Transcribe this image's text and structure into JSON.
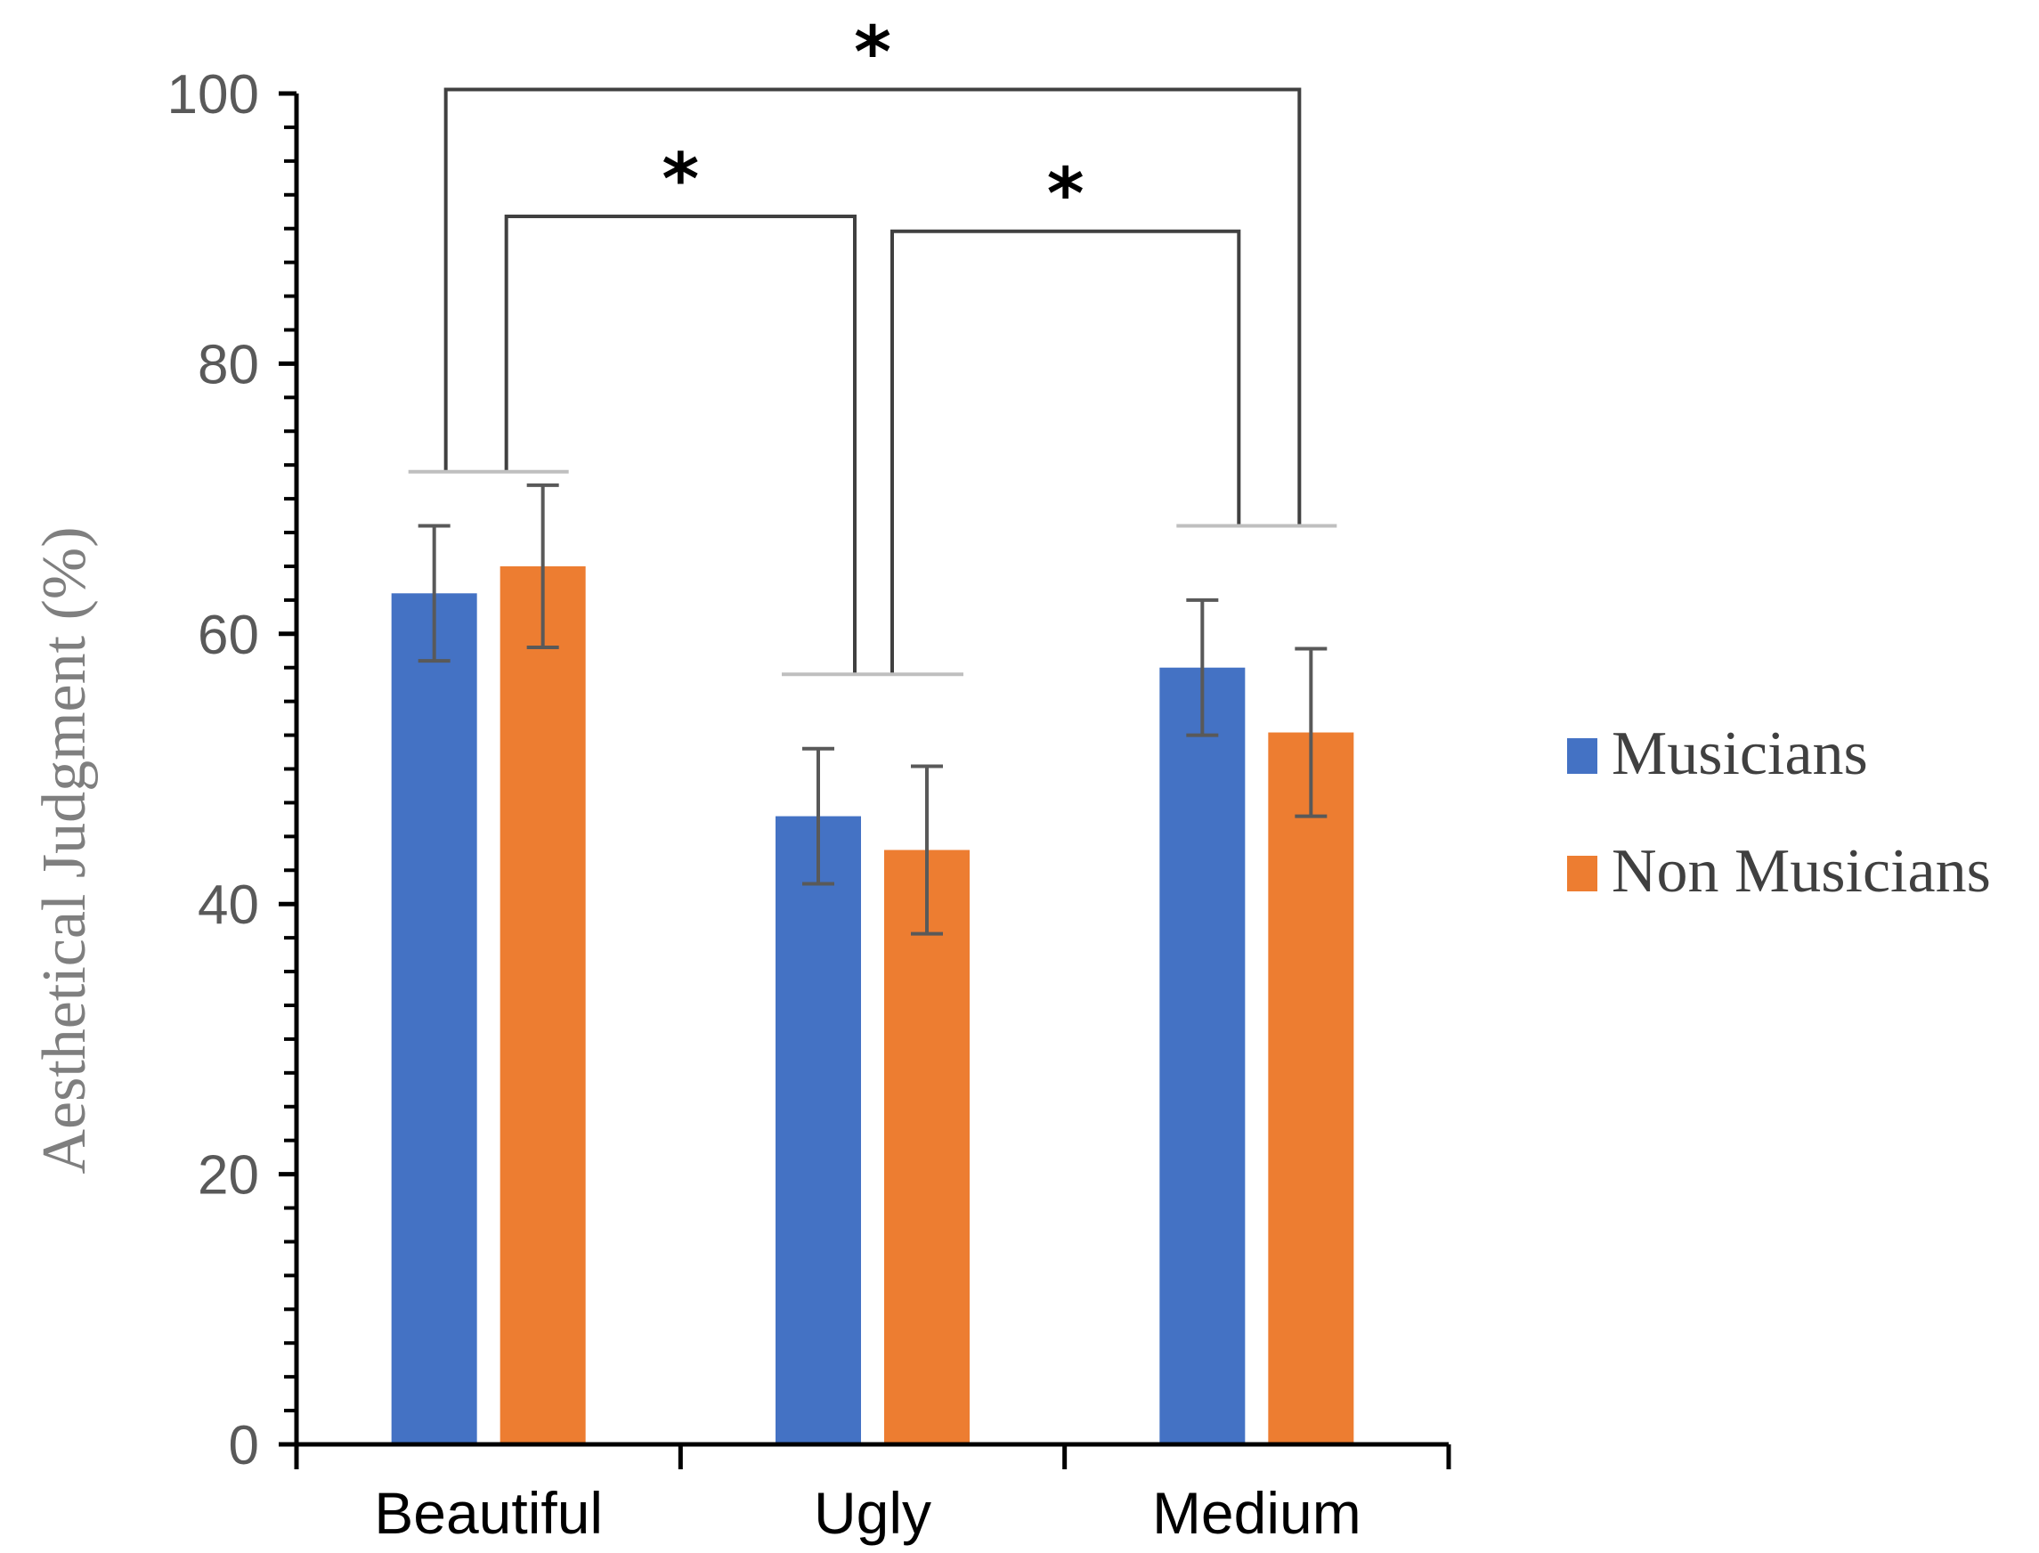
{
  "chart_data": {
    "type": "bar",
    "title": "",
    "xlabel": "",
    "ylabel": "Aesthetical Judgment (%)",
    "ylim": [
      0,
      100
    ],
    "yticks": [
      0,
      20,
      40,
      60,
      80,
      100
    ],
    "minor_tick_step": 2.5,
    "categories": [
      "Beautiful",
      "Ugly",
      "Medium"
    ],
    "series": [
      {
        "name": "Musicians",
        "color": "#4472C4",
        "values": [
          63,
          46.5,
          57.5
        ],
        "errors": [
          5,
          5,
          5
        ]
      },
      {
        "name": "Non Musicians",
        "color": "#ED7D31",
        "values": [
          65,
          44,
          52.7
        ],
        "errors": [
          6,
          6.2,
          6.2
        ]
      }
    ],
    "legend_position": "right",
    "significance": [
      {
        "from": "Beautiful",
        "to": "Medium",
        "bracket_y": 100.3,
        "base_y": [
          72,
          68
        ],
        "label": "*"
      },
      {
        "from": "Beautiful",
        "to": "Ugly",
        "bracket_y": 90.9,
        "base_y": [
          72,
          57
        ],
        "label": "*"
      },
      {
        "from": "Ugly",
        "to": "Medium",
        "bracket_y": 89.8,
        "base_y": [
          57,
          68
        ],
        "label": "*"
      }
    ]
  }
}
